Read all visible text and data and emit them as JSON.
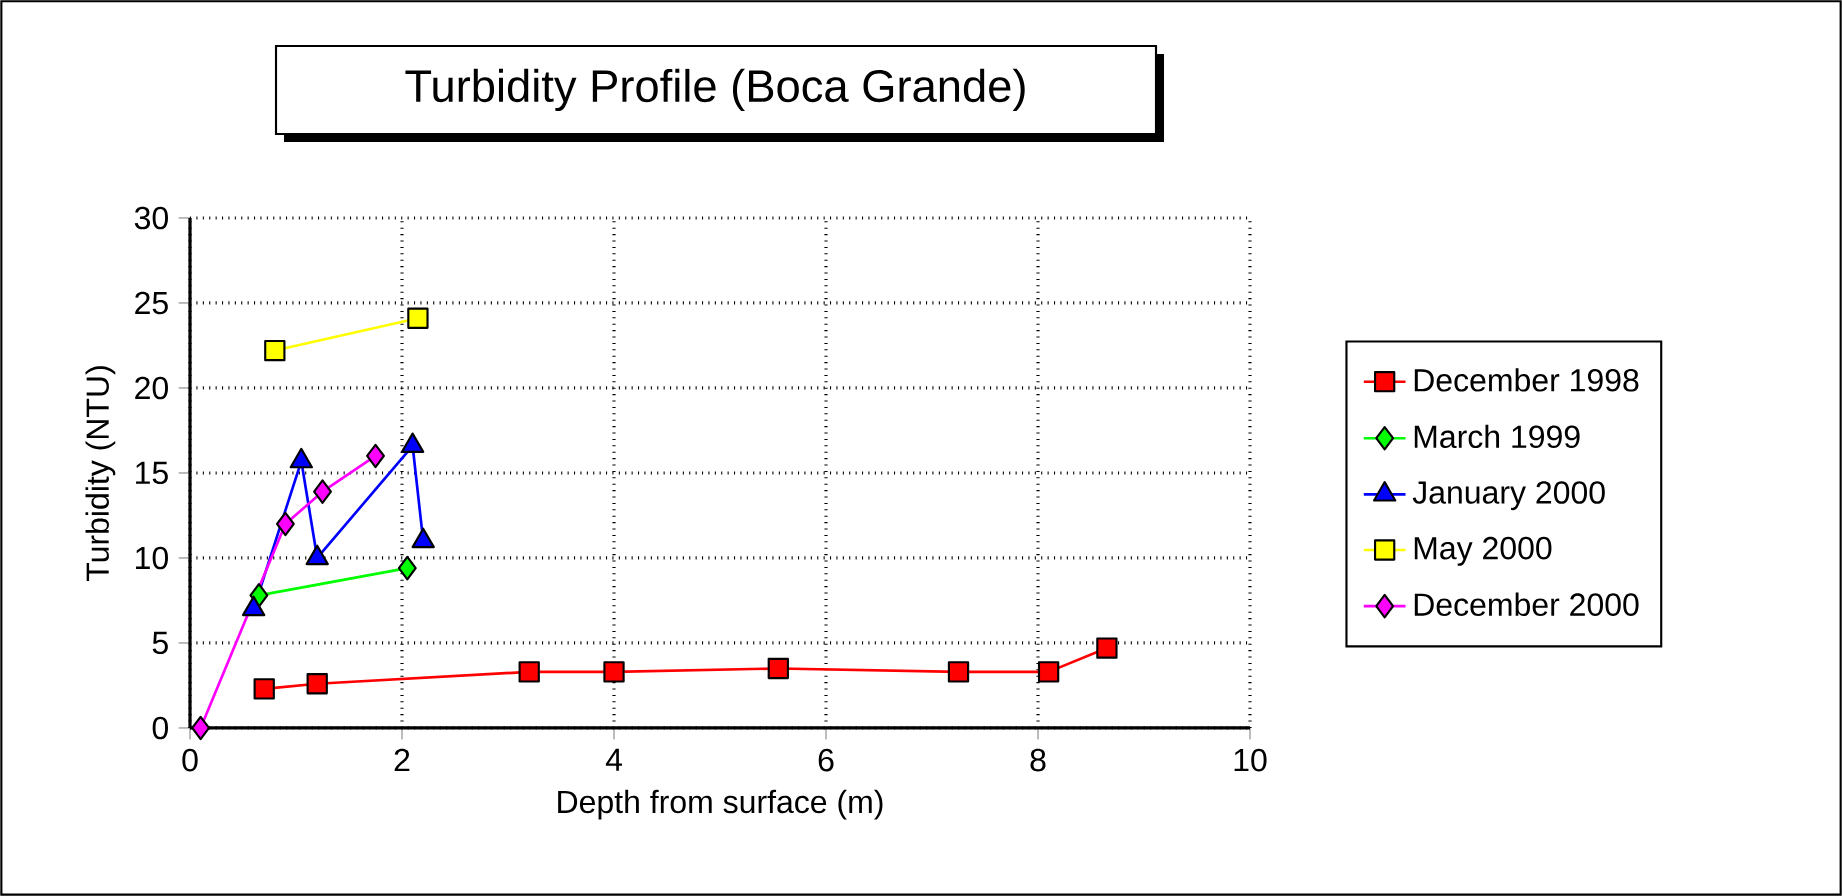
{
  "chart_data": {
    "type": "line",
    "title": "Turbidity Profile (Boca Grande)",
    "xlabel": "Depth from surface (m)",
    "ylabel": "Turbidity (NTU)",
    "xlim": [
      0,
      10
    ],
    "xticks": [
      0,
      2,
      4,
      6,
      8,
      10
    ],
    "ylim": [
      0,
      30
    ],
    "yticks": [
      0,
      5,
      10,
      15,
      20,
      25,
      30
    ],
    "grid": true,
    "legend": "right",
    "series": [
      {
        "name": "December 1998",
        "color": "#ff0000",
        "marker": "square",
        "x": [
          0.7,
          1.2,
          3.2,
          4.0,
          5.55,
          7.25,
          8.1,
          8.65
        ],
        "values": [
          2.3,
          2.6,
          3.3,
          3.3,
          3.5,
          3.3,
          3.3,
          4.7
        ]
      },
      {
        "name": "March 1999",
        "color": "#00ff00",
        "marker": "diamond",
        "x": [
          0.65,
          2.05
        ],
        "values": [
          7.8,
          9.4
        ]
      },
      {
        "name": "January 2000",
        "color": "#0000ff",
        "marker": "triangle",
        "x": [
          0.6,
          1.05,
          1.2,
          2.1,
          2.2
        ],
        "values": [
          7.0,
          15.7,
          10.0,
          16.6,
          11.0
        ]
      },
      {
        "name": "May 2000",
        "color": "#ffff00",
        "marker": "square",
        "x": [
          0.8,
          2.15
        ],
        "values": [
          22.2,
          24.1
        ]
      },
      {
        "name": "December 2000",
        "color": "#ff00ff",
        "marker": "diamond",
        "x": [
          0.1,
          0.9,
          1.25,
          1.75
        ],
        "values": [
          0.0,
          12.0,
          13.9,
          16.0
        ]
      }
    ]
  }
}
